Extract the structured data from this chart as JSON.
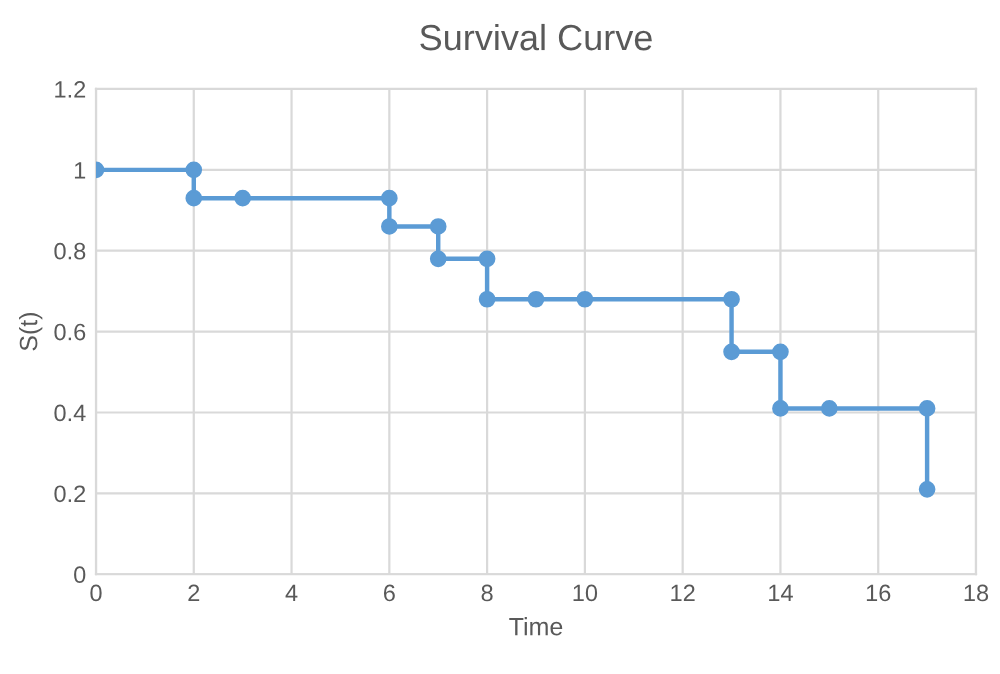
{
  "chart_data": {
    "type": "line",
    "title": "Survival Curve",
    "xlabel": "Time",
    "ylabel": "S(t)",
    "series": [
      {
        "color": "#5b9bd5",
        "x": [
          0,
          2,
          2,
          3,
          6,
          6,
          7,
          7,
          8,
          8,
          9,
          10,
          13,
          13,
          14,
          14,
          15,
          17,
          17
        ],
        "values": [
          1,
          1,
          0.93,
          0.93,
          0.93,
          0.86,
          0.86,
          0.78,
          0.78,
          0.68,
          0.68,
          0.68,
          0.68,
          0.55,
          0.55,
          0.41,
          0.41,
          0.41,
          0.21
        ]
      }
    ],
    "xlim": [
      0,
      18
    ],
    "xticks": [
      0,
      2,
      4,
      6,
      8,
      10,
      12,
      14,
      16,
      18
    ],
    "ylim": [
      0,
      1.2
    ],
    "yticks": [
      0,
      0.2,
      0.4,
      0.6,
      0.8,
      1,
      1.2
    ],
    "grid": true,
    "marker": "circle",
    "line_style": "solid"
  }
}
